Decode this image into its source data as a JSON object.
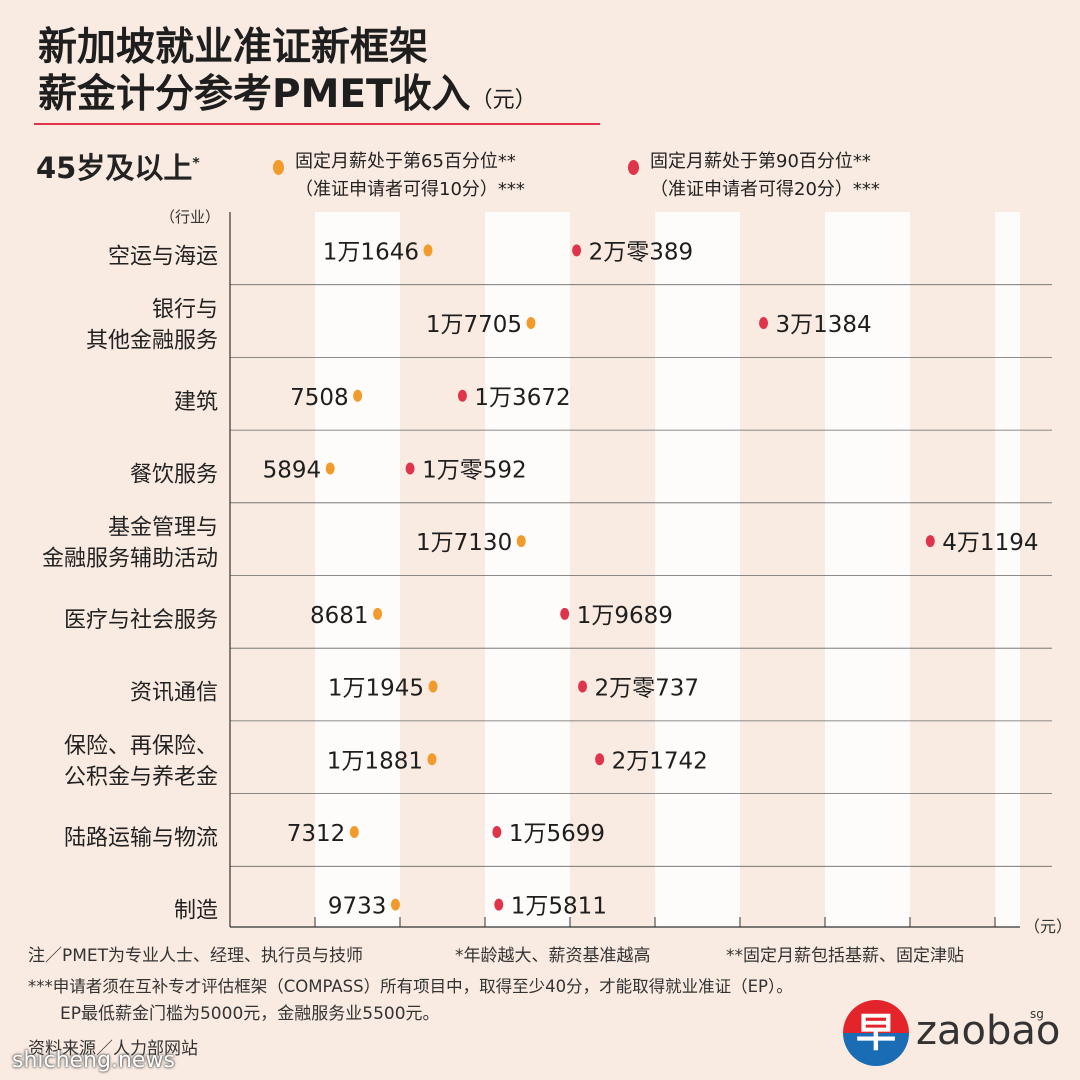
{
  "title": {
    "line1": "新加坡就业准证新框架",
    "line2": "薪金计分参考PMET收入",
    "unit": "（元）"
  },
  "age_group": "45岁及以上",
  "age_group_mark": "*",
  "legend": {
    "p65": {
      "line1": "固定月薪处于第65百分位**",
      "line2": "（准证申请者可得10分）***",
      "color": "#f29a2c"
    },
    "p90": {
      "line1": "固定月薪处于第90百分位**",
      "line2": "（准证申请者可得20分）***",
      "color": "#e0344a"
    }
  },
  "y_axis_title": "（行业）",
  "x_unit": "（元）",
  "notes": {
    "n1": "注／PMET为专业人士、经理、执行员与技师",
    "n2": "*年龄越大、薪资基准越高",
    "n3": "**固定月薪包括基薪、固定津贴",
    "n4": "***申请者须在互补专才评估框架（COMPASS）所有项目中，取得至少40分，才能取得就业准证（EP）。",
    "n5": "EP最低薪金门槛为5000元，金融服务业5500元。",
    "source": "资料来源／人力部网站"
  },
  "logo": {
    "char": "早",
    "text": "zaobao",
    "suffix": "sg"
  },
  "watermark": "shicheng.news",
  "chart_data": {
    "type": "dumbbell",
    "x_unit": "元",
    "xlim": [
      0,
      45000
    ],
    "grid": "alternating vertical bands",
    "legend_position": "top",
    "series": [
      {
        "name": "固定月薪处于第65百分位",
        "color": "#f29a2c"
      },
      {
        "name": "固定月薪处于第90百分位",
        "color": "#e0344a"
      }
    ],
    "rows": [
      {
        "category": [
          "空运与海运"
        ],
        "p65": 11646,
        "p90": 20389,
        "p65_label": "1万1646",
        "p90_label": "2万零389"
      },
      {
        "category": [
          "银行与",
          "其他金融服务"
        ],
        "p65": 17705,
        "p90": 31384,
        "p65_label": "1万7705",
        "p90_label": "3万1384"
      },
      {
        "category": [
          "建筑"
        ],
        "p65": 7508,
        "p90": 13672,
        "p65_label": "7508",
        "p90_label": "1万3672"
      },
      {
        "category": [
          "餐饮服务"
        ],
        "p65": 5894,
        "p90": 10592,
        "p65_label": "5894",
        "p90_label": "1万零592"
      },
      {
        "category": [
          "基金管理与",
          "金融服务辅助活动"
        ],
        "p65": 17130,
        "p90": 41194,
        "p65_label": "1万7130",
        "p90_label": "4万1194"
      },
      {
        "category": [
          "医疗与社会服务"
        ],
        "p65": 8681,
        "p90": 19689,
        "p65_label": "8681",
        "p90_label": "1万9689"
      },
      {
        "category": [
          "资讯通信"
        ],
        "p65": 11945,
        "p90": 20737,
        "p65_label": "1万1945",
        "p90_label": "2万零737"
      },
      {
        "category": [
          "保险、再保险、",
          "公积金与养老金"
        ],
        "p65": 11881,
        "p90": 21742,
        "p65_label": "1万1881",
        "p90_label": "2万1742"
      },
      {
        "category": [
          "陆路运输与物流"
        ],
        "p65": 7312,
        "p90": 15699,
        "p65_label": "7312",
        "p90_label": "1万5699"
      },
      {
        "category": [
          "制造"
        ],
        "p65": 9733,
        "p90": 15811,
        "p65_label": "9733",
        "p90_label": "1万5811"
      }
    ]
  }
}
